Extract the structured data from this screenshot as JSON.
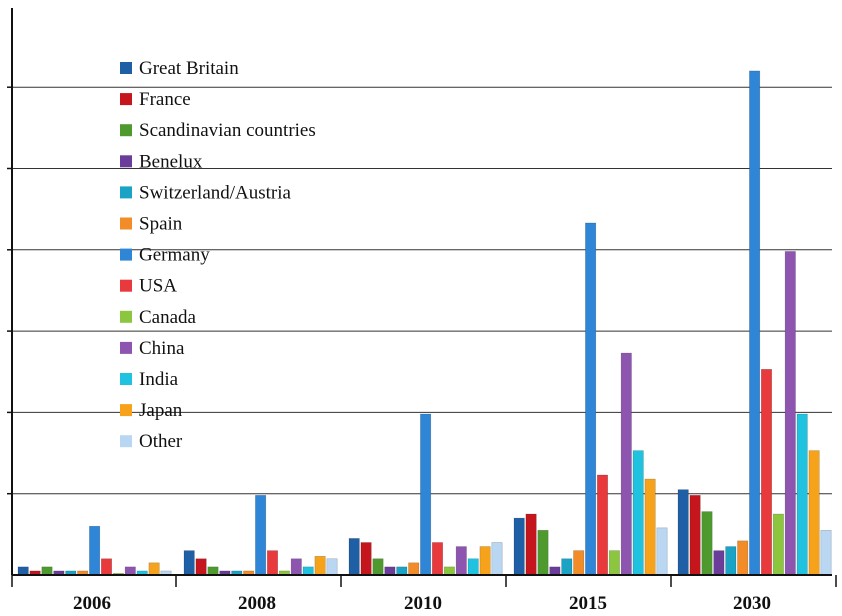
{
  "colors": {
    "great_britain": "#1f5fa6",
    "france": "#c4161c",
    "scandinavian": "#4e9a2f",
    "benelux": "#6a3d9a",
    "switzerland_austria": "#1aa3c4",
    "spain": "#f28c28",
    "germany": "#2f86d6",
    "usa": "#e8393d",
    "canada": "#8cc63f",
    "china": "#8e55b0",
    "india": "#1fc3e0",
    "japan": "#f7a21b",
    "other": "#b9d7f2",
    "gridline": "#333333",
    "axis": "#111111"
  },
  "chart_data": {
    "type": "bar",
    "title": "",
    "xlabel": "",
    "ylabel": "",
    "ylim": [
      0,
      7
    ],
    "grid": true,
    "legend_position": "top-left",
    "categories": [
      "2006",
      "2008",
      "2010",
      "2015",
      "2030"
    ],
    "series": [
      {
        "name": "Great Britain",
        "color": "great_britain",
        "values": [
          0.1,
          0.3,
          0.45,
          0.7,
          1.05
        ]
      },
      {
        "name": "France",
        "color": "france",
        "values": [
          0.05,
          0.2,
          0.4,
          0.75,
          0.98
        ]
      },
      {
        "name": "Scandinavian countries",
        "color": "scandinavian",
        "values": [
          0.1,
          0.1,
          0.2,
          0.55,
          0.78
        ]
      },
      {
        "name": "Benelux",
        "color": "benelux",
        "values": [
          0.05,
          0.05,
          0.1,
          0.1,
          0.3
        ]
      },
      {
        "name": "Switzerland/Austria",
        "color": "switzerland_austria",
        "values": [
          0.05,
          0.05,
          0.1,
          0.2,
          0.35
        ]
      },
      {
        "name": "Spain",
        "color": "spain",
        "values": [
          0.05,
          0.05,
          0.15,
          0.3,
          0.42
        ]
      },
      {
        "name": "Germany",
        "color": "germany",
        "values": [
          0.6,
          0.98,
          1.98,
          4.33,
          6.2
        ]
      },
      {
        "name": "USA",
        "color": "usa",
        "values": [
          0.2,
          0.3,
          0.4,
          1.23,
          2.53
        ]
      },
      {
        "name": "Canada",
        "color": "canada",
        "values": [
          0.02,
          0.05,
          0.1,
          0.3,
          0.75
        ]
      },
      {
        "name": "China",
        "color": "china",
        "values": [
          0.1,
          0.2,
          0.35,
          2.73,
          3.98
        ]
      },
      {
        "name": "India",
        "color": "india",
        "values": [
          0.05,
          0.1,
          0.2,
          1.53,
          1.98
        ]
      },
      {
        "name": "Japan",
        "color": "japan",
        "values": [
          0.15,
          0.23,
          0.35,
          1.18,
          1.53
        ]
      },
      {
        "name": "Other",
        "color": "other",
        "values": [
          0.05,
          0.2,
          0.4,
          0.58,
          0.55
        ]
      }
    ]
  }
}
